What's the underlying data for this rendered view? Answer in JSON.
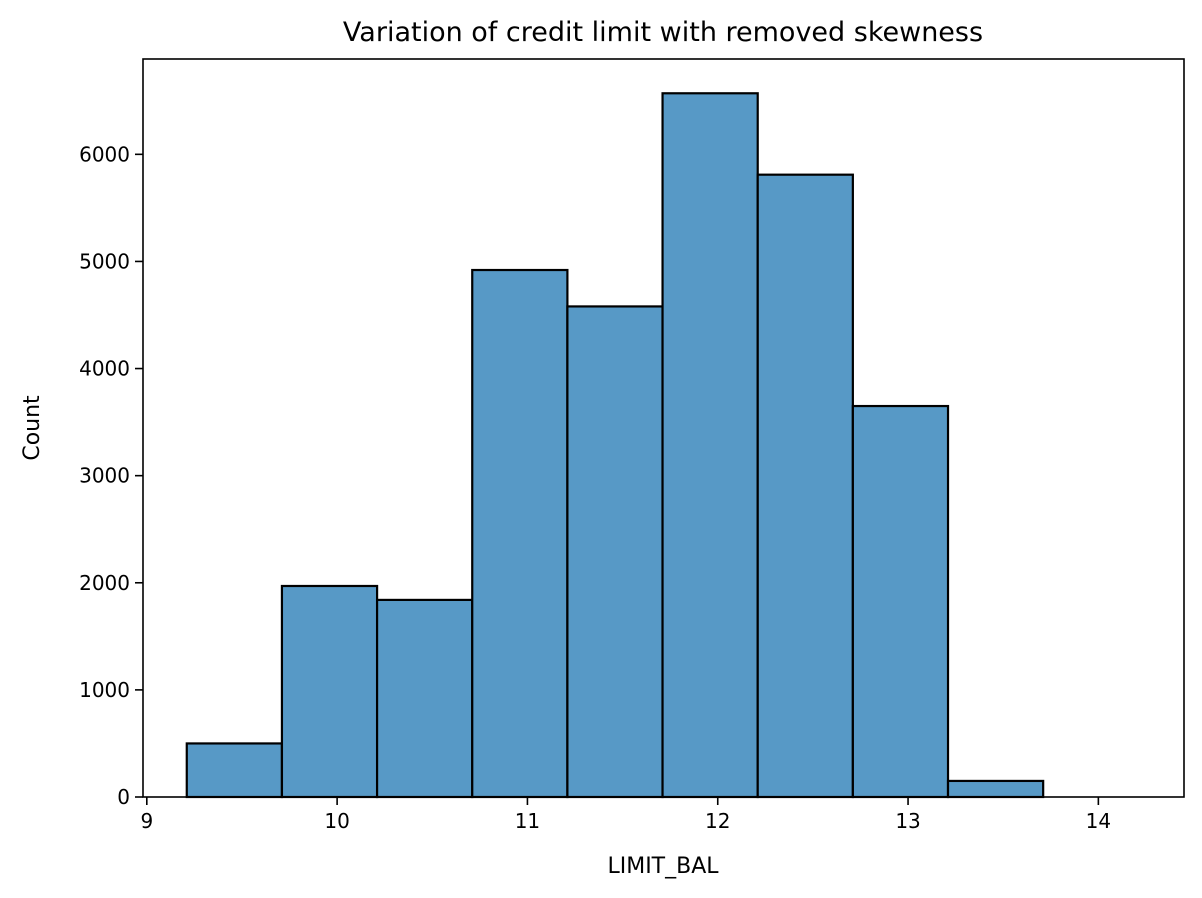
{
  "chart_data": {
    "type": "bar",
    "title": "Variation of credit limit with removed skewness",
    "xlabel": "LIMIT_BAL",
    "ylabel": "Count",
    "bar_color": "#5799c6",
    "edge_color": "#000000",
    "grid": false,
    "xlim": [
      8.98,
      14.45
    ],
    "ylim": [
      0,
      6890
    ],
    "xticks": [
      9,
      10,
      11,
      12,
      13,
      14
    ],
    "yticks": [
      0,
      1000,
      2000,
      3000,
      4000,
      5000,
      6000
    ],
    "bin_edges": [
      9.21,
      9.71,
      10.21,
      10.71,
      11.21,
      11.71,
      12.21,
      12.71,
      13.21,
      13.71
    ],
    "values": [
      500,
      1970,
      1840,
      4920,
      4580,
      6570,
      5810,
      3650,
      150
    ]
  }
}
